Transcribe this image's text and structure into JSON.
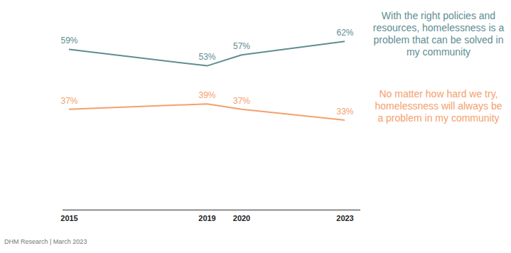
{
  "chart_data": {
    "type": "line",
    "x": [
      2015,
      2019,
      2020,
      2023
    ],
    "xlim": [
      2015,
      2023
    ],
    "xticks": [
      2015,
      2019,
      2020,
      2023
    ],
    "ylim": [
      0,
      70
    ],
    "series": [
      {
        "name": "With the right policies and resources, homelessness is a problem that can be solved in my community",
        "color": "#5e8d93",
        "values": [
          59,
          53,
          57,
          62
        ],
        "value_labels": [
          "59%",
          "53%",
          "57%",
          "62%"
        ]
      },
      {
        "name": "No matter how hard we try, homelessness will always be a problem in my community",
        "color": "#f4a06c",
        "values": [
          37,
          39,
          37,
          33
        ],
        "value_labels": [
          "37%",
          "39%",
          "37%",
          "33%"
        ]
      }
    ],
    "data_labels": true,
    "tick_labels": "x",
    "grid": false,
    "legend": "right",
    "source": "DHM Research | March 2023"
  }
}
